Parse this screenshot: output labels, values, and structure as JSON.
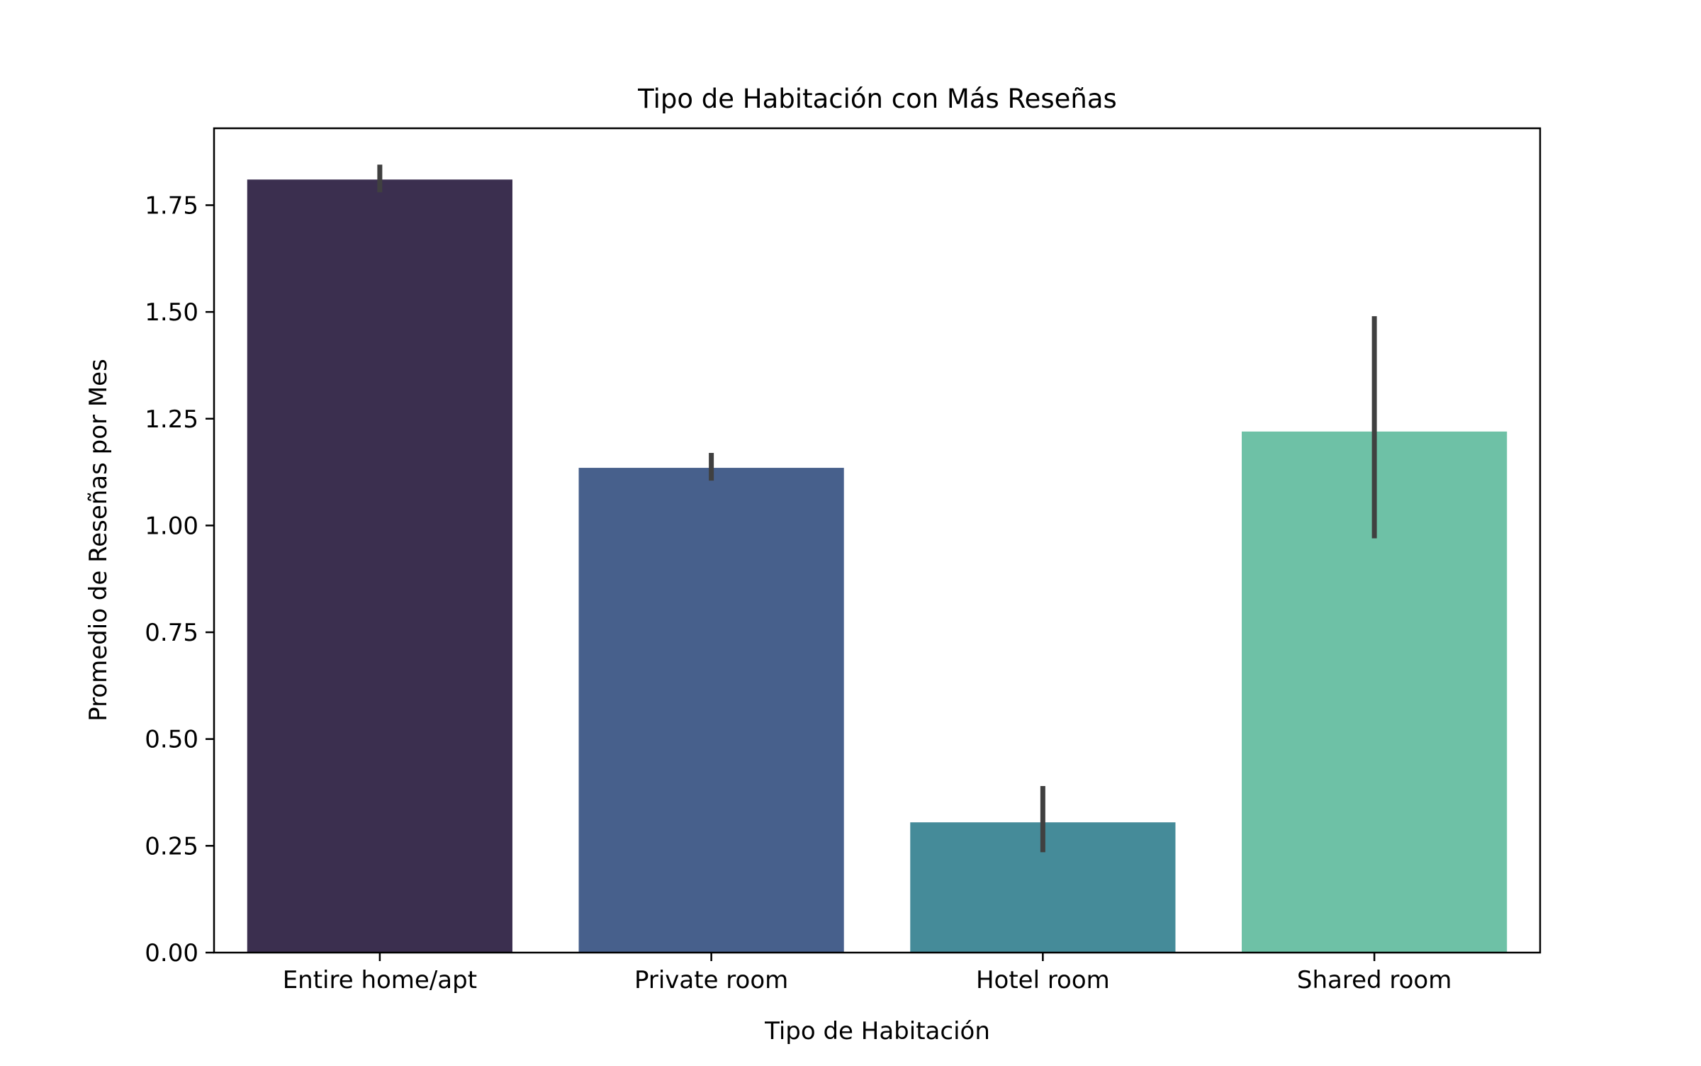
{
  "chart_data": {
    "type": "bar",
    "title": "Tipo de Habitación con Más Reseñas",
    "xlabel": "Tipo de Habitación",
    "ylabel": "Promedio de Reseñas por Mes",
    "categories": [
      "Entire home/apt",
      "Private room",
      "Hotel room",
      "Shared room"
    ],
    "values": [
      1.81,
      1.135,
      0.305,
      1.22
    ],
    "error_bars": [
      {
        "low": 1.78,
        "high": 1.845
      },
      {
        "low": 1.105,
        "high": 1.17
      },
      {
        "low": 0.235,
        "high": 0.39
      },
      {
        "low": 0.97,
        "high": 1.49
      }
    ],
    "ylim": [
      0,
      1.93
    ],
    "yticks": [
      "0.00",
      "0.25",
      "0.50",
      "0.75",
      "1.00",
      "1.25",
      "1.50",
      "1.75"
    ],
    "grid": false,
    "legend": "none",
    "colors": [
      "#3b2f4f",
      "#47608c",
      "#458b99",
      "#6ec1a6"
    ],
    "errorbar_color": "#404040"
  }
}
